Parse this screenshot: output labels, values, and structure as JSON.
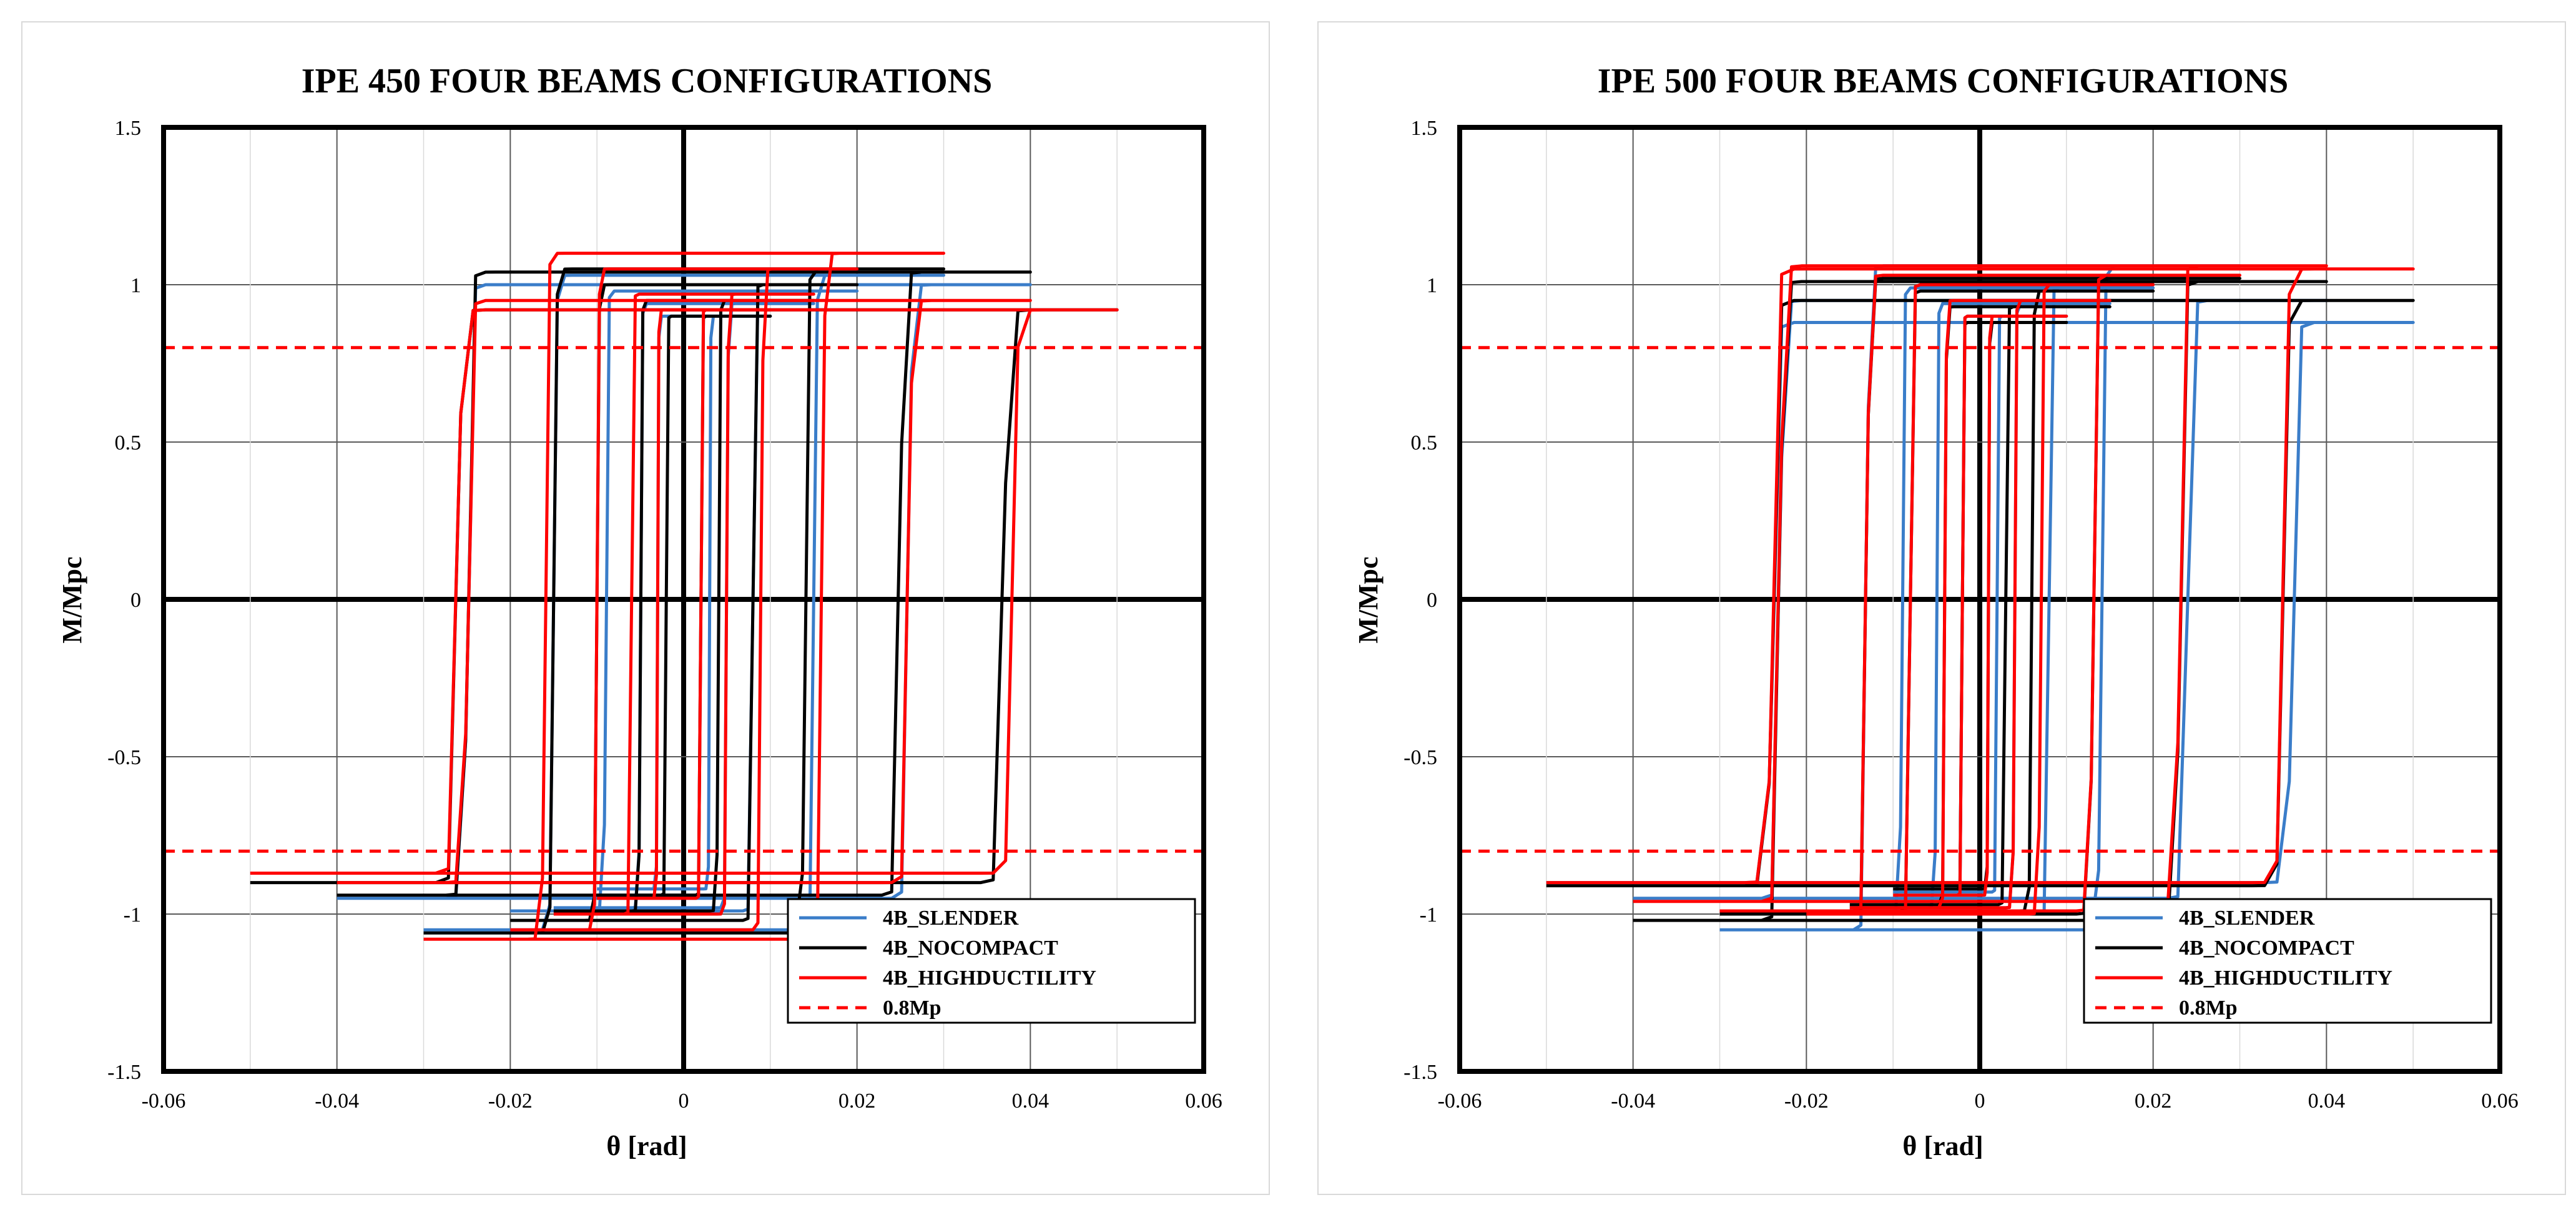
{
  "colors": {
    "slender": "#3a7dc9",
    "nocompact": "#000000",
    "highductility": "#ff0000",
    "mp": "#ff0000",
    "grid": "#595959",
    "minorgrid": "#d9d9d9"
  },
  "chart_data": [
    {
      "type": "line",
      "title": "IPE 450 FOUR BEAMS CONFIGURATIONS",
      "xlabel": "θ [rad]",
      "ylabel": "M/Mpc",
      "xlim": [
        -0.06,
        0.06
      ],
      "ylim": [
        -1.5,
        1.5
      ],
      "x_ticks": [
        -0.06,
        -0.04,
        -0.02,
        0,
        0.02,
        0.04,
        0.06
      ],
      "x_tick_labels": [
        "-0.06",
        "-0.04",
        "-0.02",
        "0",
        "0.02",
        "0.04",
        "0.06"
      ],
      "y_ticks": [
        -1.5,
        -1,
        -0.5,
        0,
        0.5,
        1,
        1.5
      ],
      "y_tick_labels": [
        "-1.5",
        "-1",
        "-0.5",
        "0",
        "0.5",
        "1",
        "1.5"
      ],
      "legend": [
        "4B_SLENDER",
        "4B_NOCOMPACT",
        "4B_HIGHDUCTILITY",
        "0.8Mp"
      ],
      "legend_position": "bottom-right",
      "series": [
        {
          "name": "4B_SLENDER",
          "key": "slender",
          "cycles": [
            {
              "amp": 0.01,
              "top": 0.9,
              "bottom": -0.92,
              "zero_up": 0.003,
              "zero_down": -0.003
            },
            {
              "amp": 0.015,
              "top": 0.94,
              "bottom": -0.98,
              "zero_up": 0.005,
              "zero_down": -0.005
            },
            {
              "amp": 0.02,
              "top": 0.98,
              "bottom": -0.99,
              "zero_up": 0.008,
              "zero_down": -0.009
            },
            {
              "amp": 0.03,
              "top": 1.03,
              "bottom": -1.05,
              "zero_up": 0.015,
              "zero_down": -0.015
            },
            {
              "amp": 0.04,
              "top": 1.0,
              "bottom": -0.95,
              "zero_up": 0.026,
              "zero_down": -0.025
            }
          ]
        },
        {
          "name": "4B_NOCOMPACT",
          "key": "nocompact",
          "cycles": [
            {
              "amp": 0.01,
              "top": 0.9,
              "bottom": -0.94,
              "zero_up": 0.002,
              "zero_down": -0.002
            },
            {
              "amp": 0.015,
              "top": 0.95,
              "bottom": -0.99,
              "zero_up": 0.004,
              "zero_down": -0.005
            },
            {
              "amp": 0.02,
              "top": 1.0,
              "bottom": -1.02,
              "zero_up": 0.008,
              "zero_down": -0.01
            },
            {
              "amp": 0.03,
              "top": 1.05,
              "bottom": -1.06,
              "zero_up": 0.014,
              "zero_down": -0.015
            },
            {
              "amp": 0.04,
              "top": 1.04,
              "bottom": -0.94,
              "zero_up": 0.025,
              "zero_down": -0.025
            },
            {
              "amp": 0.05,
              "top": 0.92,
              "bottom": -0.9,
              "zero_up": 0.037,
              "zero_down": -0.026
            }
          ]
        },
        {
          "name": "4B_HIGHDUCTILITY",
          "key": "highductility",
          "cycles": [
            {
              "amp": 0.01,
              "top": 0.92,
              "bottom": -0.95,
              "zero_up": 0.002,
              "zero_down": -0.003
            },
            {
              "amp": 0.015,
              "top": 0.97,
              "bottom": -1.0,
              "zero_up": 0.005,
              "zero_down": -0.006
            },
            {
              "amp": 0.02,
              "top": 1.05,
              "bottom": -1.05,
              "zero_up": 0.009,
              "zero_down": -0.01
            },
            {
              "amp": 0.03,
              "top": 1.1,
              "bottom": -1.08,
              "zero_up": 0.016,
              "zero_down": -0.016
            },
            {
              "amp": 0.04,
              "top": 0.95,
              "bottom": -0.9,
              "zero_up": 0.026,
              "zero_down": -0.025
            },
            {
              "amp": 0.05,
              "top": 0.92,
              "bottom": -0.87,
              "zero_up": 0.038,
              "zero_down": -0.026
            }
          ]
        },
        {
          "name": "0.8Mp",
          "key": "mp",
          "dashed": true,
          "values": [
            0.8,
            -0.8
          ]
        }
      ]
    },
    {
      "type": "line",
      "title": "IPE 500 FOUR BEAMS CONFIGURATIONS",
      "xlabel": "θ [rad]",
      "ylabel": "M/Mpc",
      "xlim": [
        -0.06,
        0.06
      ],
      "ylim": [
        -1.5,
        1.5
      ],
      "x_ticks": [
        -0.06,
        -0.04,
        -0.02,
        0,
        0.02,
        0.04,
        0.06
      ],
      "x_tick_labels": [
        "-0.06",
        "-0.04",
        "-0.02",
        "0",
        "0.02",
        "0.04",
        "0.06"
      ],
      "y_ticks": [
        -1.5,
        -1,
        -0.5,
        0,
        0.5,
        1,
        1.5
      ],
      "y_tick_labels": [
        "-1.5",
        "-1",
        "-0.5",
        "0",
        "0.5",
        "1",
        "1.5"
      ],
      "legend": [
        "4B_SLENDER",
        "4B_NOCOMPACT",
        "4B_HIGHDUCTILITY",
        "0.8Mp"
      ],
      "legend_position": "bottom-right",
      "series": [
        {
          "name": "4B_SLENDER",
          "key": "slender",
          "cycles": [
            {
              "amp": 0.01,
              "top": 0.9,
              "bottom": -0.93,
              "zero_up": 0.002,
              "zero_down": -0.002
            },
            {
              "amp": 0.015,
              "top": 0.94,
              "bottom": -0.98,
              "zero_up": 0.004,
              "zero_down": -0.005
            },
            {
              "amp": 0.02,
              "top": 0.99,
              "bottom": -1.0,
              "zero_up": 0.008,
              "zero_down": -0.009
            },
            {
              "amp": 0.03,
              "top": 1.06,
              "bottom": -1.05,
              "zero_up": 0.014,
              "zero_down": -0.013
            },
            {
              "amp": 0.04,
              "top": 0.95,
              "bottom": -0.95,
              "zero_up": 0.024,
              "zero_down": -0.023
            },
            {
              "amp": 0.05,
              "top": 0.88,
              "bottom": -0.9,
              "zero_up": 0.036,
              "zero_down": -0.024
            }
          ]
        },
        {
          "name": "4B_NOCOMPACT",
          "key": "nocompact",
          "cycles": [
            {
              "amp": 0.01,
              "top": 0.88,
              "bottom": -0.92,
              "zero_up": 0.001,
              "zero_down": -0.002
            },
            {
              "amp": 0.015,
              "top": 0.93,
              "bottom": -0.97,
              "zero_up": 0.003,
              "zero_down": -0.004
            },
            {
              "amp": 0.02,
              "top": 0.98,
              "bottom": -0.99,
              "zero_up": 0.006,
              "zero_down": -0.008
            },
            {
              "amp": 0.03,
              "top": 1.02,
              "bottom": -1.0,
              "zero_up": 0.013,
              "zero_down": -0.013
            },
            {
              "amp": 0.04,
              "top": 1.01,
              "bottom": -1.02,
              "zero_up": 0.023,
              "zero_down": -0.023
            },
            {
              "amp": 0.05,
              "top": 0.95,
              "bottom": -0.91,
              "zero_up": 0.035,
              "zero_down": -0.024
            }
          ]
        },
        {
          "name": "4B_HIGHDUCTILITY",
          "key": "highductility",
          "cycles": [
            {
              "amp": 0.01,
              "top": 0.9,
              "bottom": -0.94,
              "zero_up": 0.001,
              "zero_down": -0.002
            },
            {
              "amp": 0.015,
              "top": 0.95,
              "bottom": -0.98,
              "zero_up": 0.004,
              "zero_down": -0.004
            },
            {
              "amp": 0.02,
              "top": 1.0,
              "bottom": -1.0,
              "zero_up": 0.007,
              "zero_down": -0.008
            },
            {
              "amp": 0.03,
              "top": 1.03,
              "bottom": -0.99,
              "zero_up": 0.013,
              "zero_down": -0.013
            },
            {
              "amp": 0.04,
              "top": 1.06,
              "bottom": -0.96,
              "zero_up": 0.023,
              "zero_down": -0.023
            },
            {
              "amp": 0.05,
              "top": 1.05,
              "bottom": -0.9,
              "zero_up": 0.035,
              "zero_down": -0.024
            }
          ]
        },
        {
          "name": "0.8Mp",
          "key": "mp",
          "dashed": true,
          "values": [
            0.8,
            -0.8
          ]
        }
      ]
    }
  ]
}
